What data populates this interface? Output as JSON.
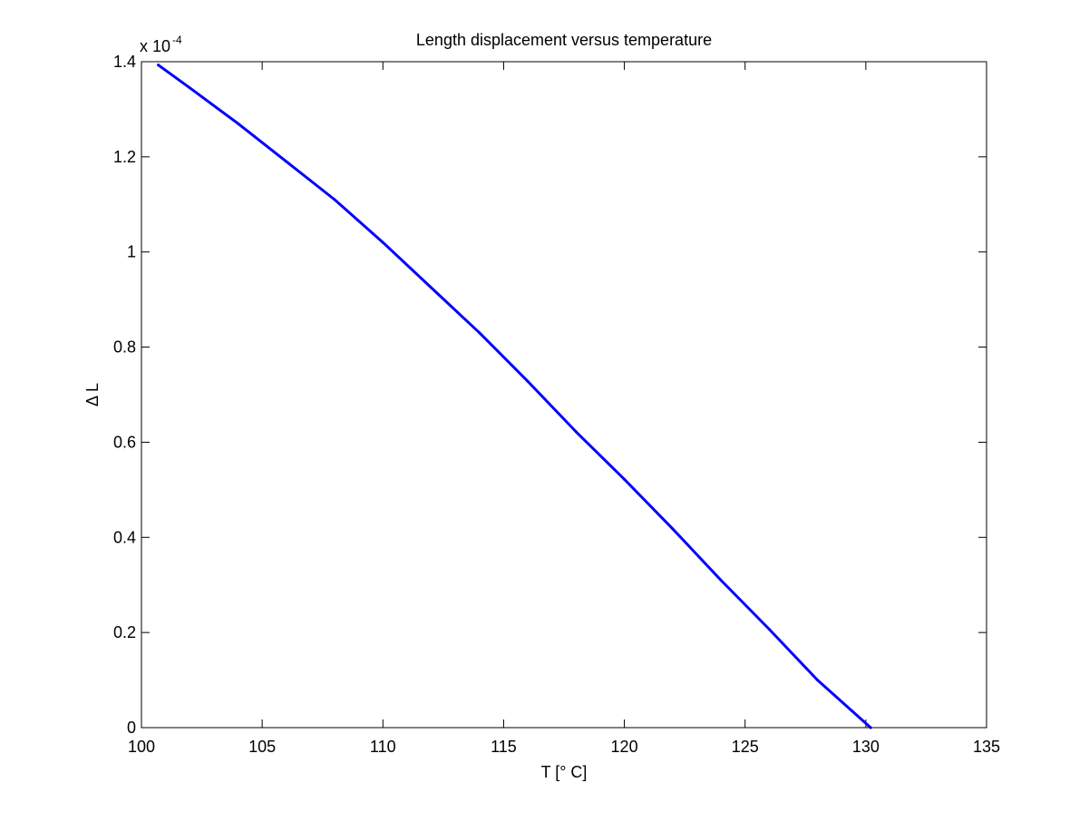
{
  "chart_data": {
    "type": "line",
    "title": "Length displacement versus temperature",
    "xlabel": "T [° C]",
    "ylabel": "Δ L",
    "y_exponent_prefix": "x 10",
    "y_exponent_power": "-4",
    "xlim": [
      100,
      135
    ],
    "ylim": [
      0,
      1.4
    ],
    "x_ticks": [
      100,
      105,
      110,
      115,
      120,
      125,
      130,
      135
    ],
    "x_tick_labels": [
      "100",
      "105",
      "110",
      "115",
      "120",
      "125",
      "130",
      "135"
    ],
    "y_ticks": [
      0,
      0.2,
      0.4,
      0.6,
      0.8,
      1.0,
      1.2,
      1.4
    ],
    "y_tick_labels": [
      "0",
      "0.2",
      "0.4",
      "0.6",
      "0.8",
      "1",
      "1.2",
      "1.4"
    ],
    "grid": false,
    "series": [
      {
        "color": "#0000ff",
        "x": [
          100.7,
          102,
          104,
          106,
          108,
          110,
          112,
          114,
          116,
          118,
          120,
          122,
          124,
          126,
          128,
          130.2
        ],
        "y": [
          1.393,
          1.345,
          1.27,
          1.19,
          1.11,
          1.02,
          0.925,
          0.83,
          0.728,
          0.622,
          0.522,
          0.418,
          0.31,
          0.207,
          0.1,
          0.0
        ]
      }
    ]
  }
}
